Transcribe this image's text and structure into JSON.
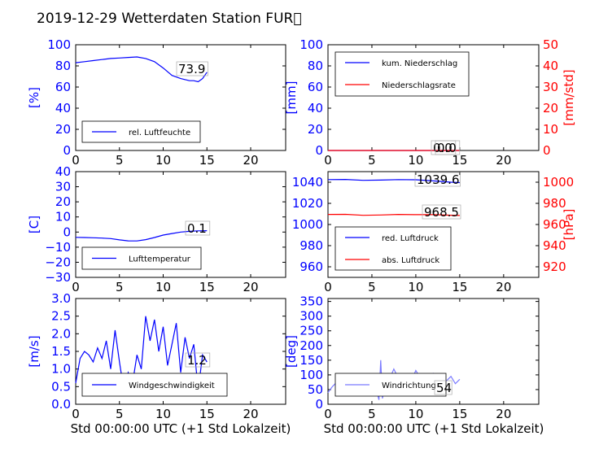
{
  "figure": {
    "title": "2019-12-29 Wetterdaten Station FUR\u0000",
    "xlabel": "Std 00:00:00 UTC (+1 Std Lokalzeit)"
  },
  "colors": {
    "primary": "#0000ff",
    "secondary": "#ff0000",
    "light": "#7a7aff",
    "text": "#000000"
  },
  "chart_data": [
    {
      "type": "line",
      "panel": "humidity",
      "ylabel": "[%]",
      "xlim": [
        0,
        24
      ],
      "ylim": [
        0,
        100
      ],
      "xticks": [
        0,
        5,
        10,
        15,
        20
      ],
      "yticks": [
        0,
        20,
        40,
        60,
        80,
        100
      ],
      "legend": "lower-left",
      "series": [
        {
          "name": "rel. Luftfeuchte",
          "color": "#0000ff",
          "axis": "left",
          "x": [
            0,
            1,
            2,
            3,
            4,
            5,
            6,
            7,
            8,
            9,
            10,
            11,
            12,
            13,
            13.5,
            14,
            14.5,
            15
          ],
          "y": [
            83,
            84,
            85,
            86,
            87,
            87.5,
            88,
            88.5,
            87,
            84,
            78,
            71,
            68,
            66,
            66,
            65,
            68,
            74
          ]
        }
      ],
      "annotations": [
        {
          "x": 12.2,
          "y": 73.9,
          "text": "73.9"
        }
      ]
    },
    {
      "type": "line",
      "panel": "precipitation",
      "ylabel": "[mm]",
      "ylabel_right": "[mm/std]",
      "xlim": [
        0,
        24
      ],
      "ylim": [
        0,
        100
      ],
      "ylim_right": [
        0,
        50
      ],
      "xticks": [
        0,
        5,
        10,
        15,
        20
      ],
      "yticks": [
        0,
        20,
        40,
        60,
        80,
        100
      ],
      "yticks_right": [
        0,
        10,
        20,
        30,
        40,
        50
      ],
      "legend": "top-left",
      "series": [
        {
          "name": "kum. Niederschlag",
          "color": "#0000ff",
          "axis": "left",
          "x": [
            0,
            15
          ],
          "y": [
            0,
            0
          ]
        },
        {
          "name": "Niederschlagsrate",
          "color": "#ff0000",
          "axis": "right",
          "x": [
            0,
            15
          ],
          "y": [
            0,
            0
          ]
        }
      ],
      "annotations": [
        {
          "x": 11.9,
          "y": 0,
          "text": "0.0"
        },
        {
          "x": 12.2,
          "y": 0,
          "text": "0.0"
        }
      ]
    },
    {
      "type": "line",
      "panel": "temperature",
      "ylabel": "[C]",
      "xlim": [
        0,
        24
      ],
      "ylim": [
        -30,
        40
      ],
      "xticks": [
        0,
        5,
        10,
        15,
        20
      ],
      "yticks": [
        -30,
        -20,
        -10,
        0,
        10,
        20,
        30,
        40
      ],
      "legend": "lower-left",
      "series": [
        {
          "name": "Lufttemperatur",
          "color": "#0000ff",
          "axis": "left",
          "x": [
            0,
            1,
            2,
            3,
            4,
            5,
            6,
            7,
            8,
            9,
            10,
            11,
            12,
            13,
            14,
            15
          ],
          "y": [
            -3.5,
            -3.6,
            -3.8,
            -4,
            -4.3,
            -5.2,
            -5.8,
            -5.9,
            -5,
            -3.6,
            -2,
            -1,
            0,
            0.5,
            0.8,
            0.9
          ]
        }
      ],
      "annotations": [
        {
          "x": 12.8,
          "y": 0.1,
          "text": "0.1"
        }
      ]
    },
    {
      "type": "line",
      "panel": "pressure",
      "ylabel_right": "[hPa]",
      "xlim": [
        0,
        24
      ],
      "ylim": [
        950,
        1050
      ],
      "ylim_right": [
        910,
        1010
      ],
      "xticks": [
        0,
        5,
        10,
        15,
        20
      ],
      "yticks": [
        960,
        980,
        1000,
        1020,
        1040
      ],
      "yticks_right": [
        920,
        940,
        960,
        980,
        1000
      ],
      "legend": "lower-left",
      "series": [
        {
          "name": "red. Luftdruck",
          "color": "#0000ff",
          "axis": "left",
          "x": [
            0,
            2,
            4,
            6,
            8,
            10,
            12,
            14,
            15
          ],
          "y": [
            1042.5,
            1042.6,
            1041.8,
            1042,
            1042.5,
            1042.3,
            1041.2,
            1040,
            1039.6
          ]
        },
        {
          "name": "abs. Luftdruck",
          "color": "#ff0000",
          "axis": "right",
          "x": [
            0,
            2,
            4,
            6,
            8,
            10,
            12,
            14,
            15
          ],
          "y": [
            969.5,
            969.6,
            968.7,
            969,
            969.5,
            969.3,
            969.3,
            968.8,
            968.5
          ]
        }
      ],
      "annotations": [
        {
          "x": 10.2,
          "y": 1039.6,
          "text": "1039.6"
        },
        {
          "x": 10.7,
          "y": 968.5,
          "text": "968.5"
        }
      ]
    },
    {
      "type": "line",
      "panel": "windspeed",
      "ylabel": "[m/s]",
      "xlim": [
        0,
        24
      ],
      "ylim": [
        0,
        3
      ],
      "xticks": [
        0,
        5,
        10,
        15,
        20
      ],
      "yticks": [
        0,
        0.5,
        1,
        1.5,
        2,
        2.5,
        3
      ],
      "legend": "lower-left",
      "series": [
        {
          "name": "Windgeschwindigkeit",
          "color": "#0000ff",
          "axis": "left",
          "x": [
            0,
            0.5,
            1,
            1.5,
            2,
            2.5,
            3,
            3.5,
            4,
            4.5,
            5,
            5.5,
            6,
            6.5,
            7,
            7.5,
            8,
            8.5,
            9,
            9.5,
            10,
            10.5,
            11,
            11.5,
            12,
            12.5,
            13,
            13.5,
            14,
            14.5,
            15
          ],
          "y": [
            0.6,
            1.3,
            1.5,
            1.4,
            1.2,
            1.6,
            1.3,
            1.8,
            1.0,
            2.1,
            1.2,
            0.4,
            0.9,
            0.6,
            1.4,
            1.0,
            2.5,
            1.8,
            2.4,
            1.5,
            2.2,
            1.1,
            1.7,
            2.3,
            0.9,
            1.9,
            1.3,
            1.7,
            0.4,
            1.4,
            1.2
          ]
        }
      ],
      "annotations": [
        {
          "x": 12.8,
          "y": 1.2,
          "text": "1.2"
        }
      ]
    },
    {
      "type": "line",
      "panel": "winddirection",
      "ylabel": "[deg]",
      "xlim": [
        0,
        24
      ],
      "ylim": [
        0,
        360
      ],
      "xticks": [
        0,
        5,
        10,
        15,
        20
      ],
      "yticks": [
        0,
        50,
        100,
        150,
        200,
        250,
        300,
        350
      ],
      "legend": "lower-left",
      "series": [
        {
          "name": "Windrichtung",
          "color": "#7a7aff",
          "axis": "left",
          "x": [
            0,
            0.5,
            1,
            1.5,
            2,
            2.5,
            3,
            3.5,
            4,
            4.5,
            5,
            5.5,
            5.8,
            6,
            6.2,
            6.5,
            7,
            7.5,
            8,
            8.5,
            9,
            9.5,
            10,
            10.5,
            11,
            11.5,
            12,
            12.5,
            13,
            13.5,
            14,
            14.5,
            15
          ],
          "y": [
            40,
            60,
            75,
            95,
            70,
            85,
            60,
            90,
            75,
            80,
            100,
            50,
            15,
            150,
            20,
            60,
            85,
            120,
            90,
            100,
            95,
            80,
            115,
            90,
            100,
            95,
            105,
            85,
            95,
            80,
            95,
            70,
            85
          ]
        }
      ],
      "annotations": [
        {
          "x": 12.9,
          "y": 54,
          "text": "54"
        }
      ]
    }
  ]
}
